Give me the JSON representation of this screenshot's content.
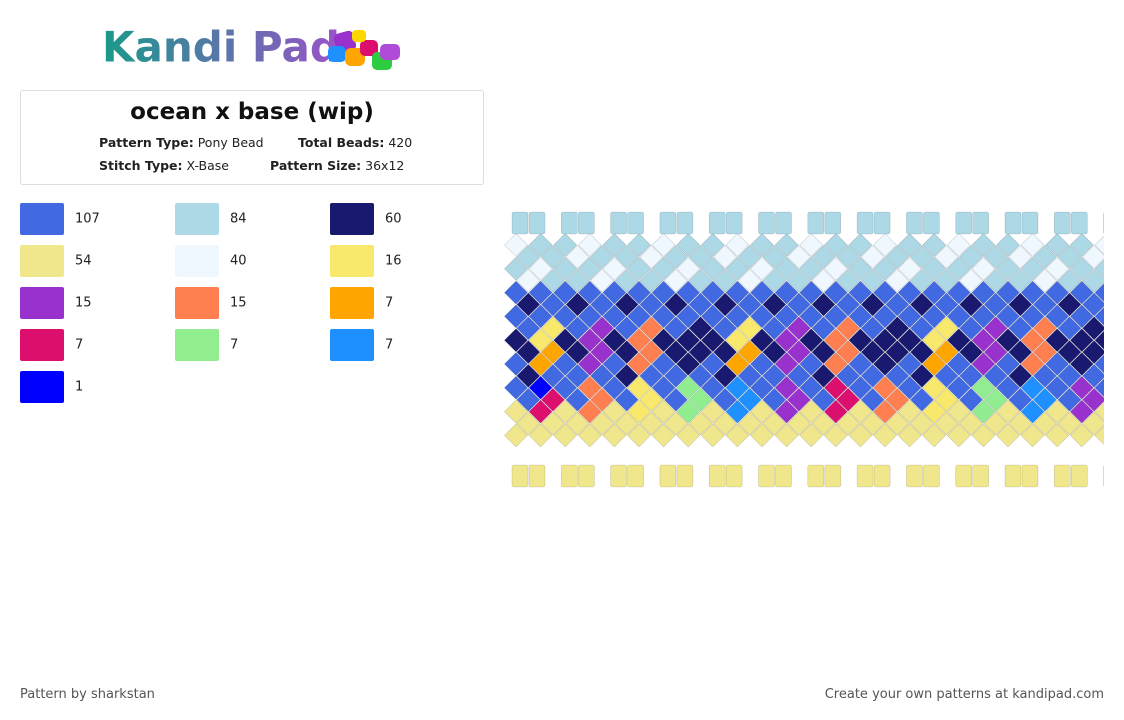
{
  "header": {
    "logo": "Kandi Pad",
    "title": "ocean x base (wip)",
    "fields": [
      {
        "label": "Pattern Type:",
        "value": "Pony Bead"
      },
      {
        "label": "Total Beads:",
        "value": "420"
      },
      {
        "label": "Stitch Type:",
        "value": "X-Base"
      },
      {
        "label": "Pattern Size:",
        "value": "36x12"
      }
    ]
  },
  "legend": [
    {
      "count": 107,
      "color": "#4169e1"
    },
    {
      "count": 84,
      "color": "#add8e6"
    },
    {
      "count": 60,
      "color": "#191970"
    },
    {
      "count": 54,
      "color": "#f0e68c"
    },
    {
      "count": 40,
      "color": "#f0f8ff"
    },
    {
      "count": 16,
      "color": "#f8e96c"
    },
    {
      "count": 15,
      "color": "#9932cc"
    },
    {
      "count": 15,
      "color": "#ff7f50"
    },
    {
      "count": 7,
      "color": "#ffa500"
    },
    {
      "count": 7,
      "color": "#dc0f6f"
    },
    {
      "count": 7,
      "color": "#90ee90"
    },
    {
      "count": 7,
      "color": "#1e90ff"
    },
    {
      "count": 1,
      "color": "#0000ff"
    }
  ],
  "footer": {
    "left": "Pattern by sharkstan",
    "right": "Create your own patterns at kandipad.com"
  }
}
